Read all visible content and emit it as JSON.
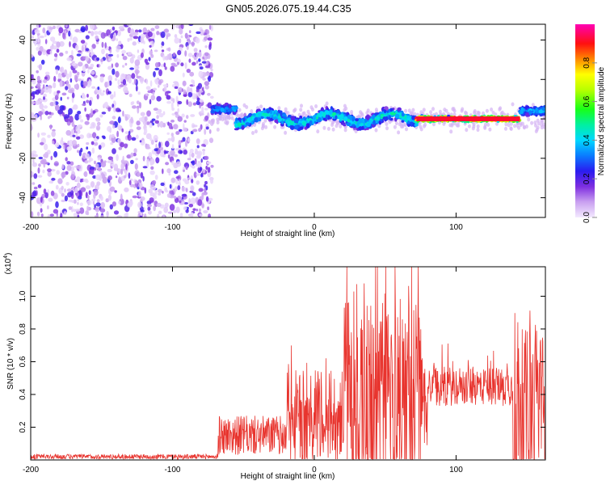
{
  "title": "GN05.2026.075.19.44.C35",
  "chart_data": [
    {
      "type": "heatmap",
      "name": "spectrogram",
      "xlabel": "Height of straight line (km)",
      "ylabel": "Frequency (Hz)",
      "xlim": [
        -200,
        163
      ],
      "ylim": [
        -50,
        48
      ],
      "x_ticks": [
        "-200",
        "-100",
        "0",
        "100"
      ],
      "y_ticks": [
        "40",
        "20",
        "0",
        "-20",
        "-40"
      ],
      "colorbar": {
        "label": "Normalized spectral amplitude",
        "range": [
          0,
          1
        ],
        "ticks": [
          "0.0",
          "0.2",
          "0.4",
          "0.6",
          "0.8"
        ]
      },
      "regions": [
        {
          "description": "broadband noise",
          "x_range": [
            -200,
            -72
          ],
          "freq_range": [
            -50,
            48
          ],
          "amplitude": 0.1
        },
        {
          "description": "onset",
          "x_range": [
            -72,
            -55
          ],
          "freq_center": 5,
          "amplitude": 0.35
        },
        {
          "description": "main signal",
          "x_range": [
            -55,
            72
          ],
          "freq_center": 0,
          "freq_width": 8,
          "amplitude": 0.45
        },
        {
          "description": "strong narrow tone",
          "x_range": [
            72,
            145
          ],
          "freq_center": 0,
          "freq_width": 3,
          "amplitude": 0.95
        },
        {
          "description": "end",
          "x_range": [
            145,
            163
          ],
          "freq_center": 4,
          "amplitude": 0.4
        }
      ]
    },
    {
      "type": "line",
      "name": "snr",
      "xlabel": "Height of straight line (km)",
      "ylabel": "SNR (10 * v/v)",
      "y_exponent_label": "(x10",
      "y_exponent_power": "4",
      "y_exponent_close": ")",
      "xlim": [
        -200,
        163
      ],
      "ylim": [
        0,
        1.18
      ],
      "x_ticks": [
        "-200",
        "-100",
        "0",
        "100"
      ],
      "y_ticks": [
        "0.2",
        "0.4",
        "0.6",
        "0.8",
        "1.0"
      ],
      "color": "#e8342e",
      "segments": [
        {
          "x_range": [
            -200,
            -68
          ],
          "level": 0.02,
          "noise": 0.015
        },
        {
          "x_range": [
            -68,
            -20
          ],
          "level": 0.15,
          "noise": 0.12
        },
        {
          "x_range": [
            -20,
            20
          ],
          "level": 0.25,
          "noise": 0.3
        },
        {
          "x_range": [
            20,
            75
          ],
          "level": 0.4,
          "noise": 0.6
        },
        {
          "x_range": [
            75,
            80
          ],
          "level": 0.35,
          "noise": 0.3
        },
        {
          "x_range": [
            80,
            140
          ],
          "level": 0.45,
          "noise": 0.12
        },
        {
          "x_range": [
            140,
            163
          ],
          "level": 0.3,
          "noise": 0.5
        }
      ],
      "peak": {
        "x": 57,
        "y": 1.18
      }
    }
  ]
}
